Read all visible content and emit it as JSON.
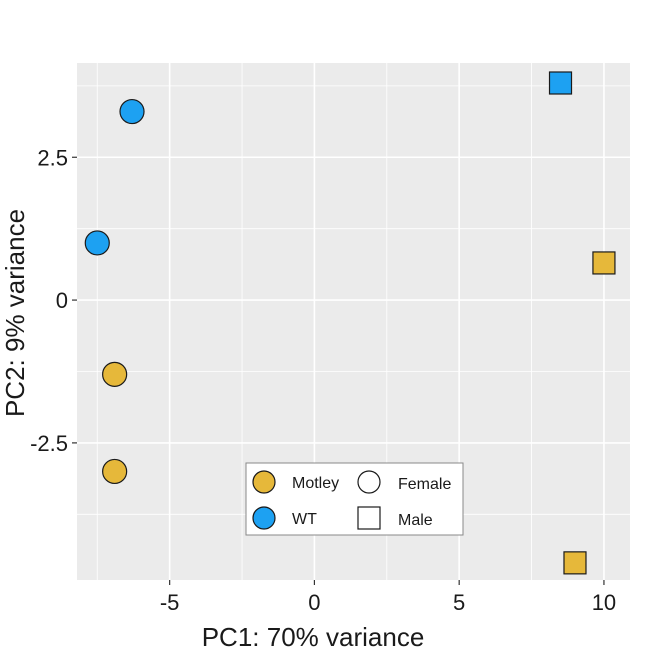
{
  "chart_data": {
    "type": "scatter",
    "title": "",
    "xlabel": "PC1: 70% variance",
    "ylabel": "PC2: 9% variance",
    "xlim": [
      -8.2,
      10.9
    ],
    "ylim": [
      -4.9,
      4.15
    ],
    "x_ticks": [
      -5,
      0,
      5,
      10
    ],
    "x_tick_labels": [
      "-5",
      "0",
      "5",
      "10"
    ],
    "y_ticks": [
      2.5,
      0,
      -2.5
    ],
    "y_tick_labels": [
      "2.5",
      "0",
      "-2.5"
    ],
    "grid": true,
    "panel_background": "#ebebeb",
    "colors": {
      "Motley": "#e6b83a",
      "WT": "#1da1f2"
    },
    "legend_position": "bottom-center",
    "legend": {
      "color": [
        {
          "label": "Motley",
          "color": "#e6b83a"
        },
        {
          "label": "WT",
          "color": "#1da1f2"
        }
      ],
      "shape": [
        {
          "label": "Female",
          "shape": "circle"
        },
        {
          "label": "Male",
          "shape": "square"
        }
      ]
    },
    "points": [
      {
        "x": -6.3,
        "y": 3.3,
        "group": "WT",
        "sex": "Female"
      },
      {
        "x": -7.5,
        "y": 1.0,
        "group": "WT",
        "sex": "Female"
      },
      {
        "x": -6.9,
        "y": -1.3,
        "group": "Motley",
        "sex": "Female"
      },
      {
        "x": -6.9,
        "y": -3.0,
        "group": "Motley",
        "sex": "Female"
      },
      {
        "x": 8.5,
        "y": 3.8,
        "group": "WT",
        "sex": "Male"
      },
      {
        "x": 10.0,
        "y": 0.65,
        "group": "Motley",
        "sex": "Male"
      },
      {
        "x": 9.0,
        "y": -4.6,
        "group": "Motley",
        "sex": "Male"
      }
    ]
  }
}
